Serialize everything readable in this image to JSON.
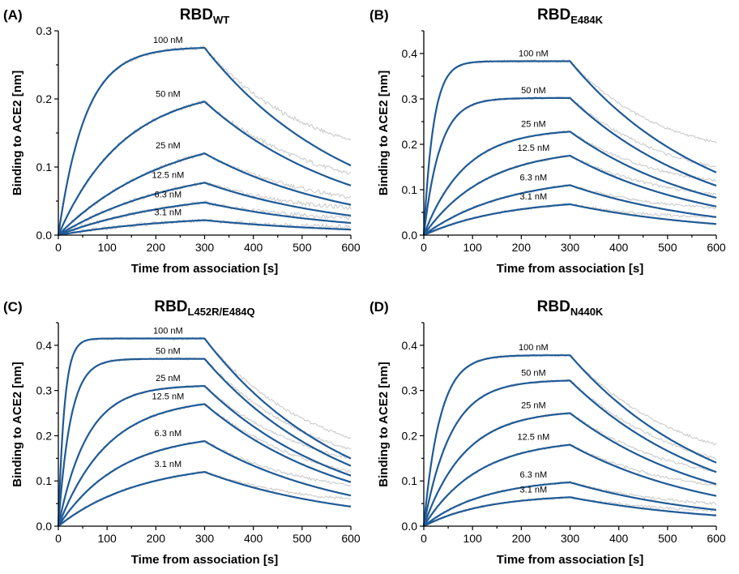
{
  "colors": {
    "fit": "#1f5a96",
    "raw": "#c8c8c8",
    "axis": "#000000"
  },
  "chart_data": [
    {
      "type": "line",
      "panel_label": "(A)",
      "title_main": "RBD",
      "title_sub": "WT",
      "xlabel": "Time from association [s]",
      "ylabel": "Binding to ACE2 [nm]",
      "xlim": [
        0,
        600
      ],
      "ylim": [
        0,
        0.3
      ],
      "x_ticks": [
        "0",
        "100",
        "200",
        "300",
        "400",
        "500",
        "600"
      ],
      "y_ticks": [
        "0.0",
        "0.1",
        "0.2",
        "0.3"
      ],
      "y_tick_values": [
        0,
        0.1,
        0.2,
        0.3
      ],
      "association_end": 300,
      "series": [
        {
          "name": "100 nM",
          "plateau": 0.275,
          "k_on_obs": 0.018,
          "k_off": 0.0033,
          "raw_end": 0.14
        },
        {
          "name": "50 nM",
          "plateau": 0.196,
          "k_on_obs": 0.0075,
          "k_off": 0.0033,
          "raw_end": 0.09
        },
        {
          "name": "25 nM",
          "plateau": 0.12,
          "k_on_obs": 0.0045,
          "k_off": 0.0033,
          "raw_end": 0.055
        },
        {
          "name": "12.5 nM",
          "plateau": 0.077,
          "k_on_obs": 0.004,
          "k_off": 0.0033,
          "raw_end": 0.04
        },
        {
          "name": "6.3 nM",
          "plateau": 0.048,
          "k_on_obs": 0.004,
          "k_off": 0.0033,
          "raw_end": 0.025
        },
        {
          "name": "3.1 nM",
          "plateau": 0.022,
          "k_on_obs": 0.004,
          "k_off": 0.0033,
          "raw_end": 0.012
        }
      ]
    },
    {
      "type": "line",
      "panel_label": "(B)",
      "title_main": "RBD",
      "title_sub": "E484K",
      "xlabel": "Time from association [s]",
      "ylabel": "Binding to ACE2 [nm]",
      "xlim": [
        0,
        600
      ],
      "ylim": [
        0,
        0.45
      ],
      "x_ticks": [
        "0",
        "100",
        "200",
        "300",
        "400",
        "500",
        "600"
      ],
      "y_ticks": [
        "0.0",
        "0.1",
        "0.2",
        "0.3",
        "0.4"
      ],
      "y_tick_values": [
        0,
        0.1,
        0.2,
        0.3,
        0.4
      ],
      "association_end": 300,
      "series": [
        {
          "name": "100 nM",
          "plateau": 0.383,
          "k_on_obs": 0.05,
          "k_off": 0.0034,
          "raw_end": 0.205
        },
        {
          "name": "50 nM",
          "plateau": 0.302,
          "k_on_obs": 0.03,
          "k_off": 0.0034,
          "raw_end": 0.15
        },
        {
          "name": "25 nM",
          "plateau": 0.228,
          "k_on_obs": 0.012,
          "k_off": 0.0034,
          "raw_end": 0.12
        },
        {
          "name": "12.5 nM",
          "plateau": 0.175,
          "k_on_obs": 0.008,
          "k_off": 0.0034,
          "raw_end": 0.09
        },
        {
          "name": "6.3 nM",
          "plateau": 0.11,
          "k_on_obs": 0.006,
          "k_off": 0.0034,
          "raw_end": 0.06
        },
        {
          "name": "3.1 nM",
          "plateau": 0.068,
          "k_on_obs": 0.006,
          "k_off": 0.0034,
          "raw_end": 0.04
        }
      ]
    },
    {
      "type": "line",
      "panel_label": "(C)",
      "title_main": "RBD",
      "title_sub": "L452R/E484Q",
      "xlabel": "Time from association [s]",
      "ylabel": "Binding to ACE2 [nm]",
      "xlim": [
        0,
        600
      ],
      "ylim": [
        0,
        0.45
      ],
      "x_ticks": [
        "0",
        "100",
        "200",
        "300",
        "400",
        "500",
        "600"
      ],
      "y_ticks": [
        "0.0",
        "0.1",
        "0.2",
        "0.3",
        "0.4"
      ],
      "y_tick_values": [
        0,
        0.1,
        0.2,
        0.3,
        0.4
      ],
      "association_end": 300,
      "series": [
        {
          "name": "100 nM",
          "plateau": 0.415,
          "k_on_obs": 0.08,
          "k_off": 0.0034,
          "raw_end": 0.195
        },
        {
          "name": "50 nM",
          "plateau": 0.37,
          "k_on_obs": 0.04,
          "k_off": 0.0034,
          "raw_end": 0.17
        },
        {
          "name": "25 nM",
          "plateau": 0.31,
          "k_on_obs": 0.017,
          "k_off": 0.0034,
          "raw_end": 0.15
        },
        {
          "name": "12.5 nM",
          "plateau": 0.27,
          "k_on_obs": 0.01,
          "k_off": 0.0034,
          "raw_end": 0.12
        },
        {
          "name": "6.3 nM",
          "plateau": 0.188,
          "k_on_obs": 0.008,
          "k_off": 0.0034,
          "raw_end": 0.09
        },
        {
          "name": "3.1 nM",
          "plateau": 0.12,
          "k_on_obs": 0.006,
          "k_off": 0.0034,
          "raw_end": 0.06
        }
      ]
    },
    {
      "type": "line",
      "panel_label": "(D)",
      "title_main": "RBD",
      "title_sub": "N440K",
      "xlabel": "Time from association [s]",
      "ylabel": "Binding to ACE2 [nm]",
      "xlim": [
        0,
        600
      ],
      "ylim": [
        0,
        0.45
      ],
      "x_ticks": [
        "0",
        "100",
        "200",
        "300",
        "400",
        "500",
        "600"
      ],
      "y_ticks": [
        "0.0",
        "0.1",
        "0.2",
        "0.3",
        "0.4"
      ],
      "y_tick_values": [
        0,
        0.1,
        0.2,
        0.3,
        0.4
      ],
      "association_end": 300,
      "series": [
        {
          "name": "100 nM",
          "plateau": 0.378,
          "k_on_obs": 0.03,
          "k_off": 0.0033,
          "raw_end": 0.18
        },
        {
          "name": "50 nM",
          "plateau": 0.322,
          "k_on_obs": 0.018,
          "k_off": 0.0033,
          "raw_end": 0.15
        },
        {
          "name": "25 nM",
          "plateau": 0.25,
          "k_on_obs": 0.012,
          "k_off": 0.0033,
          "raw_end": 0.12
        },
        {
          "name": "12.5 nM",
          "plateau": 0.18,
          "k_on_obs": 0.009,
          "k_off": 0.0033,
          "raw_end": 0.09
        },
        {
          "name": "6.3 nM",
          "plateau": 0.097,
          "k_on_obs": 0.008,
          "k_off": 0.0033,
          "raw_end": 0.05
        },
        {
          "name": "3.1 nM",
          "plateau": 0.064,
          "k_on_obs": 0.008,
          "k_off": 0.0033,
          "raw_end": 0.035
        }
      ]
    }
  ]
}
